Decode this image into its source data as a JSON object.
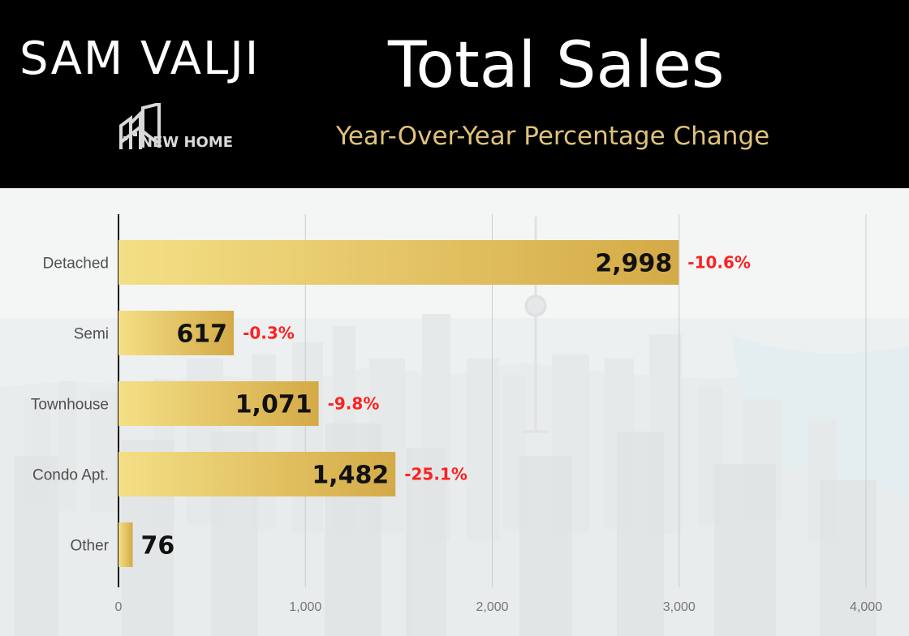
{
  "header": {
    "brand_name": "SAM VALJI",
    "logo_text": "NEW HOME"
  },
  "chart_data": {
    "type": "bar",
    "orientation": "horizontal",
    "title": "Total Sales",
    "subtitle": "Year-Over-Year Percentage Change",
    "categories": [
      "Detached",
      "Semi",
      "Townhouse",
      "Condo Apt.",
      "Other"
    ],
    "series": [
      {
        "name": "Total Sales",
        "values": [
          2998,
          617,
          1071,
          1482,
          76
        ],
        "value_labels": [
          "2,998",
          "617",
          "1,071",
          "1,482",
          "76"
        ]
      }
    ],
    "change_labels": [
      "-10.6%",
      "-0.3%",
      "-9.8%",
      "-25.1%",
      ""
    ],
    "xlim": [
      0,
      4000
    ],
    "x_ticks": [
      0,
      1000,
      2000,
      3000,
      4000
    ],
    "x_tick_labels": [
      "0",
      "1,000",
      "2,000",
      "3,000",
      "4,000"
    ],
    "grid": true,
    "legend": "none"
  },
  "colors": {
    "bar_start": "#f4df86",
    "bar_end": "#d4aa47",
    "change": "#ff2020",
    "subtitle": "#e0c27a"
  }
}
